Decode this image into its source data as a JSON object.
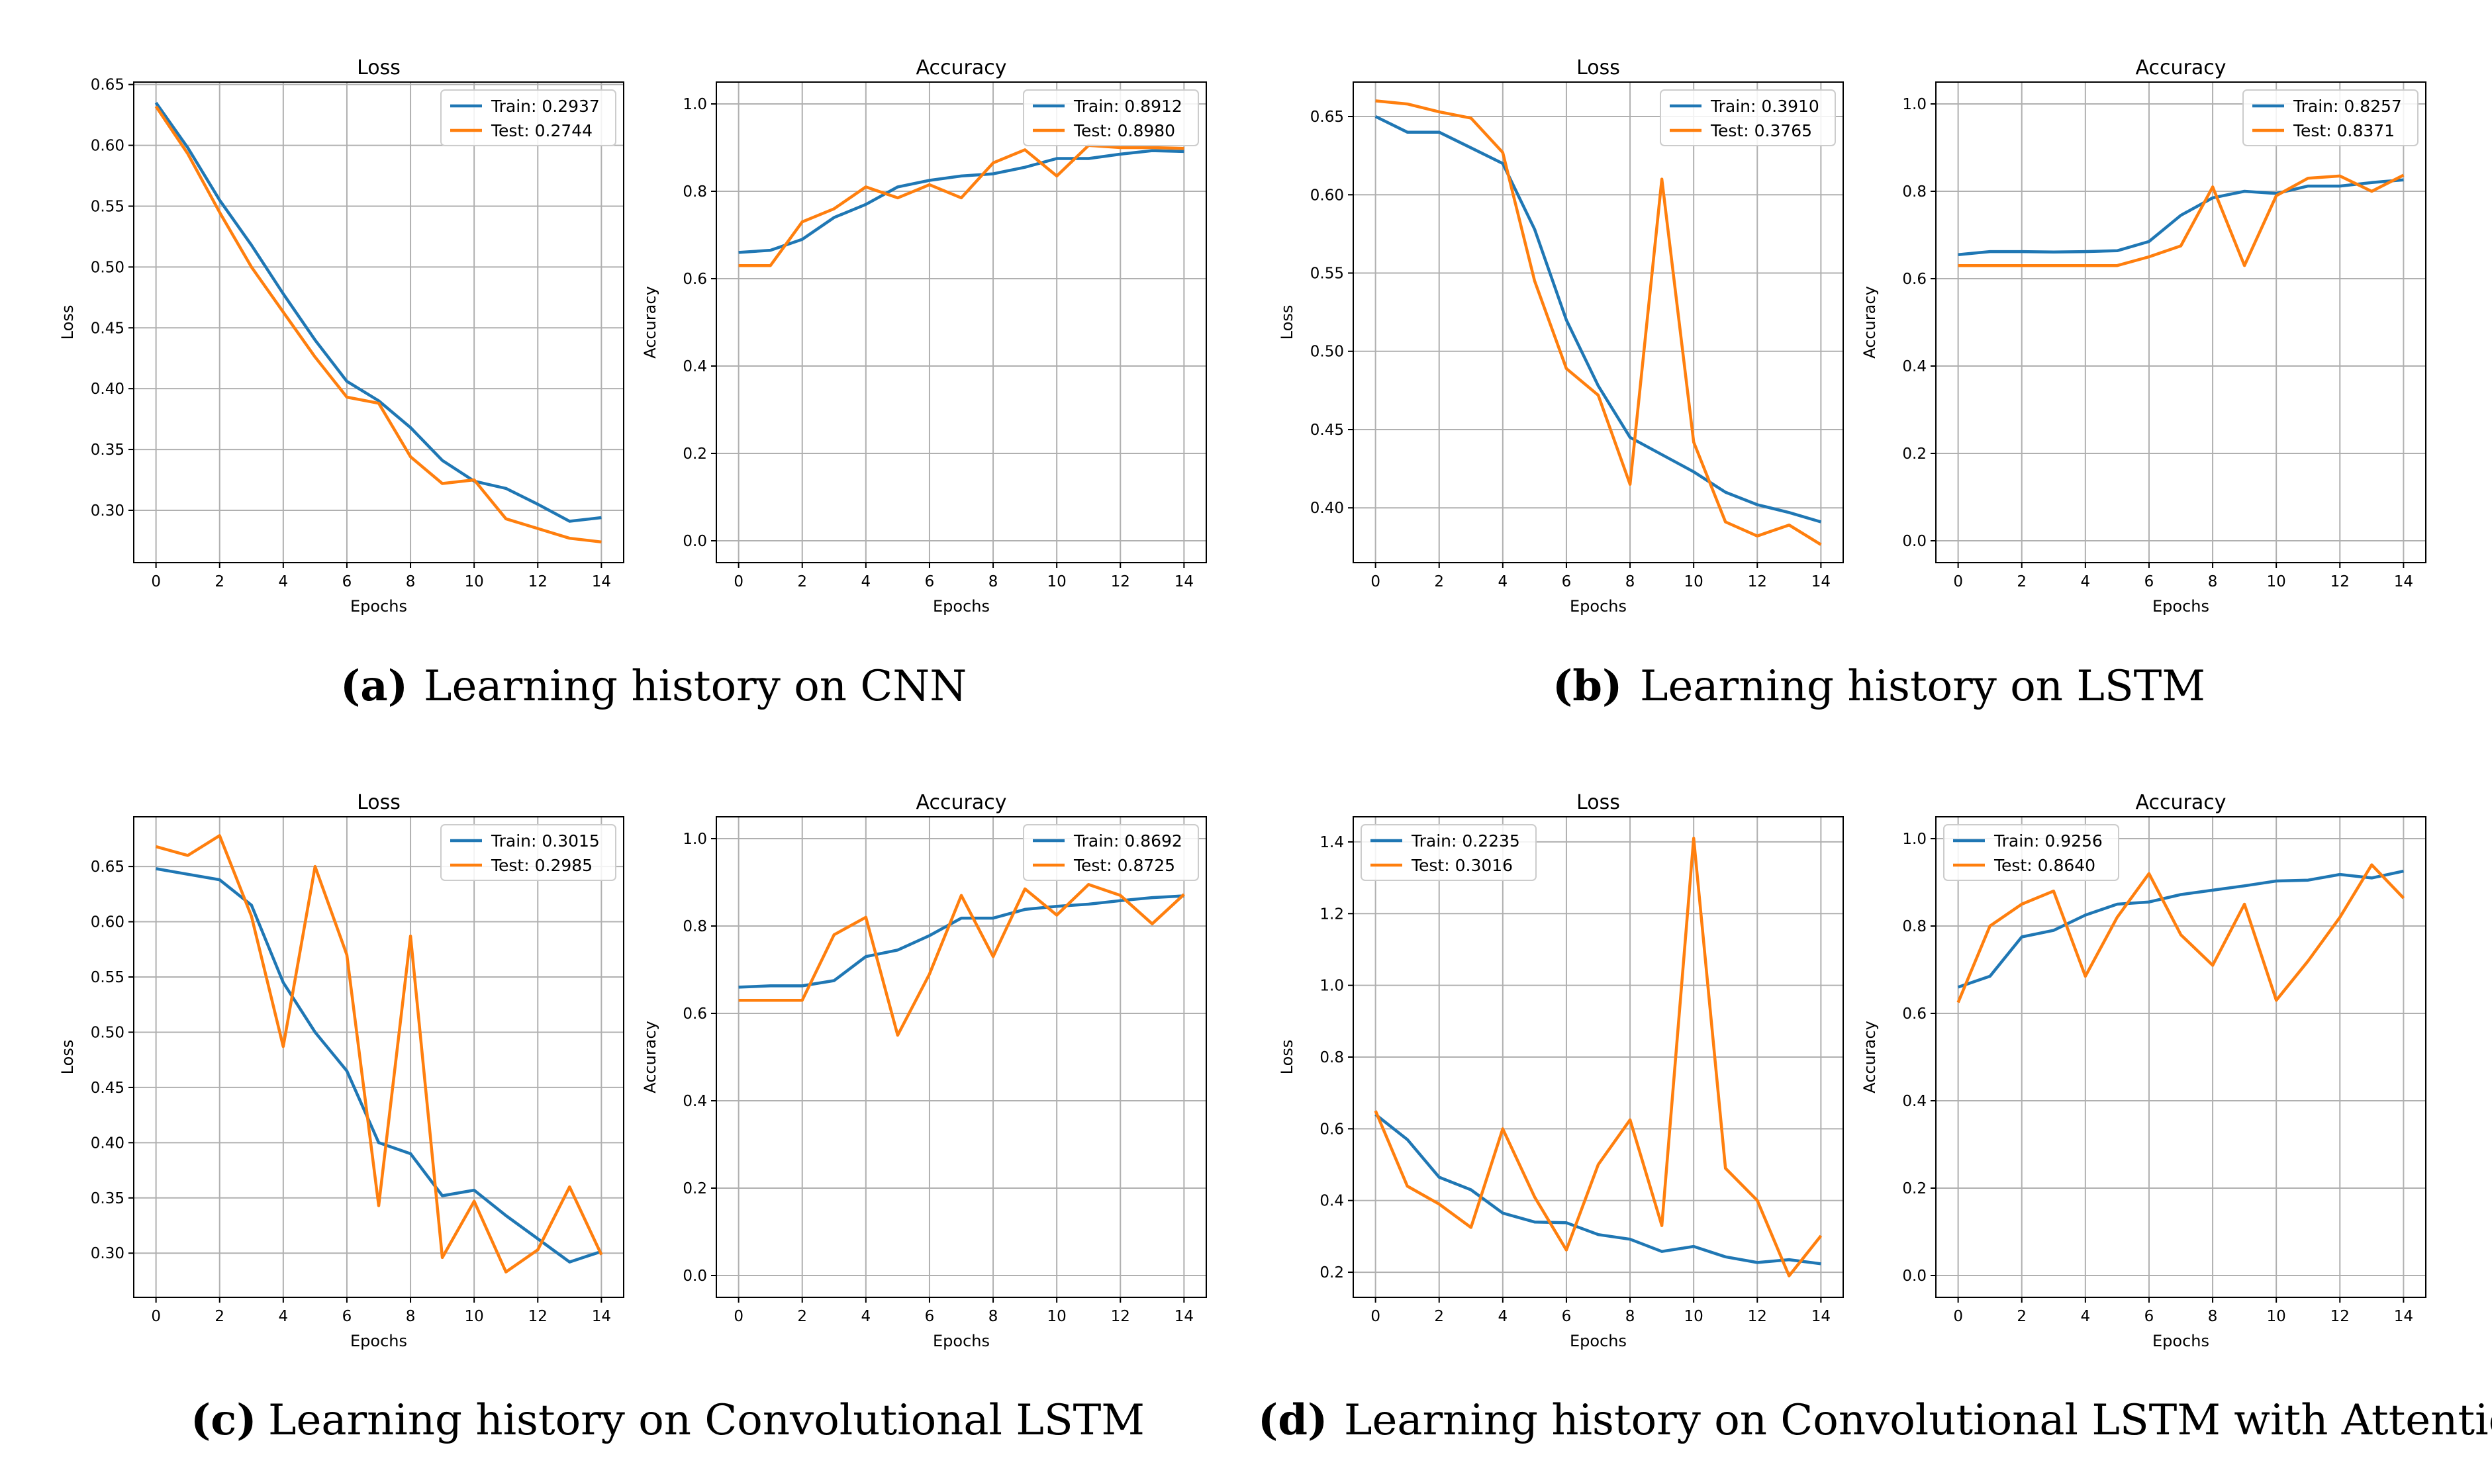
{
  "figure_captions": [
    {
      "letter": "a",
      "text": "Learning history on CNN"
    },
    {
      "letter": "b",
      "text": "Learning history on LSTM"
    },
    {
      "letter": "c",
      "text": "Learning history on Convolutional LSTM"
    },
    {
      "letter": "d",
      "text": "Learning history on Convolutional LSTM with Attention"
    }
  ],
  "colors": {
    "train": "#1f77b4",
    "test": "#ff7f0e",
    "grid": "#b0b0b0",
    "axis": "#000000"
  },
  "chart_data": [
    {
      "type": "line",
      "title": "Loss",
      "xlabel": "Epochs",
      "ylabel": "Loss",
      "x": [
        0,
        1,
        2,
        3,
        4,
        5,
        6,
        7,
        8,
        9,
        10,
        11,
        12,
        13,
        14
      ],
      "xticks": [
        0,
        2,
        4,
        6,
        8,
        10,
        12,
        14
      ],
      "xlim": [
        -0.7,
        14.7
      ],
      "yticks": [
        0.3,
        0.35,
        0.4,
        0.45,
        0.5,
        0.55,
        0.6,
        0.65
      ],
      "ytick_labels": [
        "0.30",
        "0.35",
        "0.40",
        "0.45",
        "0.50",
        "0.55",
        "0.60",
        "0.65"
      ],
      "ylim": [
        0.257,
        0.652
      ],
      "legend": "upper-right",
      "series": [
        {
          "name": "Train: 0.2937",
          "color": "#1f77b4",
          "values": [
            0.635,
            0.598,
            0.555,
            0.518,
            0.478,
            0.44,
            0.406,
            0.39,
            0.368,
            0.341,
            0.324,
            0.318,
            0.305,
            0.291,
            0.294
          ]
        },
        {
          "name": "Test: 0.2744",
          "color": "#ff7f0e",
          "values": [
            0.632,
            0.593,
            0.545,
            0.5,
            0.463,
            0.426,
            0.393,
            0.388,
            0.344,
            0.322,
            0.325,
            0.293,
            0.285,
            0.277,
            0.274
          ]
        }
      ]
    },
    {
      "type": "line",
      "title": "Accuracy",
      "xlabel": "Epochs",
      "ylabel": "Accuracy",
      "x": [
        0,
        1,
        2,
        3,
        4,
        5,
        6,
        7,
        8,
        9,
        10,
        11,
        12,
        13,
        14
      ],
      "xticks": [
        0,
        2,
        4,
        6,
        8,
        10,
        12,
        14
      ],
      "xlim": [
        -0.7,
        14.7
      ],
      "yticks": [
        0.0,
        0.2,
        0.4,
        0.6,
        0.8,
        1.0
      ],
      "ytick_labels": [
        "0.0",
        "0.2",
        "0.4",
        "0.6",
        "0.8",
        "1.0"
      ],
      "ylim": [
        -0.05,
        1.05
      ],
      "legend": "upper-right",
      "series": [
        {
          "name": "Train: 0.8912",
          "color": "#1f77b4",
          "values": [
            0.66,
            0.665,
            0.69,
            0.74,
            0.77,
            0.81,
            0.825,
            0.835,
            0.84,
            0.855,
            0.875,
            0.875,
            0.885,
            0.893,
            0.891
          ]
        },
        {
          "name": "Test: 0.8980",
          "color": "#ff7f0e",
          "values": [
            0.63,
            0.63,
            0.73,
            0.76,
            0.81,
            0.785,
            0.815,
            0.785,
            0.865,
            0.895,
            0.835,
            0.905,
            0.9,
            0.9,
            0.898
          ]
        }
      ]
    },
    {
      "type": "line",
      "title": "Loss",
      "xlabel": "Epochs",
      "ylabel": "Loss",
      "x": [
        0,
        1,
        2,
        3,
        4,
        5,
        6,
        7,
        8,
        9,
        10,
        11,
        12,
        13,
        14
      ],
      "xticks": [
        0,
        2,
        4,
        6,
        8,
        10,
        12,
        14
      ],
      "xlim": [
        -0.7,
        14.7
      ],
      "yticks": [
        0.4,
        0.45,
        0.5,
        0.55,
        0.6,
        0.65
      ],
      "ytick_labels": [
        "0.40",
        "0.45",
        "0.50",
        "0.55",
        "0.60",
        "0.65"
      ],
      "ylim": [
        0.365,
        0.672
      ],
      "legend": "upper-right",
      "series": [
        {
          "name": "Train: 0.3910",
          "color": "#1f77b4",
          "values": [
            0.65,
            0.64,
            0.64,
            0.63,
            0.62,
            0.578,
            0.52,
            0.478,
            0.445,
            0.434,
            0.423,
            0.41,
            0.402,
            0.397,
            0.391
          ]
        },
        {
          "name": "Test: 0.3765",
          "color": "#ff7f0e",
          "values": [
            0.66,
            0.658,
            0.653,
            0.649,
            0.627,
            0.545,
            0.489,
            0.472,
            0.415,
            0.61,
            0.442,
            0.391,
            0.382,
            0.389,
            0.3765
          ]
        }
      ]
    },
    {
      "type": "line",
      "title": "Accuracy",
      "xlabel": "Epochs",
      "ylabel": "Accuracy",
      "x": [
        0,
        1,
        2,
        3,
        4,
        5,
        6,
        7,
        8,
        9,
        10,
        11,
        12,
        13,
        14
      ],
      "xticks": [
        0,
        2,
        4,
        6,
        8,
        10,
        12,
        14
      ],
      "xlim": [
        -0.7,
        14.7
      ],
      "yticks": [
        0.0,
        0.2,
        0.4,
        0.6,
        0.8,
        1.0
      ],
      "ytick_labels": [
        "0.0",
        "0.2",
        "0.4",
        "0.6",
        "0.8",
        "1.0"
      ],
      "ylim": [
        -0.05,
        1.05
      ],
      "legend": "upper-right",
      "series": [
        {
          "name": "Train: 0.8257",
          "color": "#1f77b4",
          "values": [
            0.655,
            0.662,
            0.662,
            0.661,
            0.662,
            0.664,
            0.685,
            0.745,
            0.785,
            0.8,
            0.795,
            0.812,
            0.812,
            0.82,
            0.826
          ]
        },
        {
          "name": "Test: 0.8371",
          "color": "#ff7f0e",
          "values": [
            0.63,
            0.63,
            0.63,
            0.63,
            0.63,
            0.63,
            0.65,
            0.675,
            0.81,
            0.63,
            0.79,
            0.83,
            0.835,
            0.8,
            0.837
          ]
        }
      ]
    },
    {
      "type": "line",
      "title": "Loss",
      "xlabel": "Epochs",
      "ylabel": "Loss",
      "x": [
        0,
        1,
        2,
        3,
        4,
        5,
        6,
        7,
        8,
        9,
        10,
        11,
        12,
        13,
        14
      ],
      "xticks": [
        0,
        2,
        4,
        6,
        8,
        10,
        12,
        14
      ],
      "xlim": [
        -0.7,
        14.7
      ],
      "yticks": [
        0.3,
        0.35,
        0.4,
        0.45,
        0.5,
        0.55,
        0.6,
        0.65
      ],
      "ytick_labels": [
        "0.30",
        "0.35",
        "0.40",
        "0.45",
        "0.50",
        "0.55",
        "0.60",
        "0.65"
      ],
      "ylim": [
        0.26,
        0.695
      ],
      "legend": "upper-right",
      "series": [
        {
          "name": "Train: 0.3015",
          "color": "#1f77b4",
          "values": [
            0.648,
            0.643,
            0.638,
            0.615,
            0.545,
            0.5,
            0.465,
            0.4,
            0.39,
            0.352,
            0.357,
            0.334,
            0.313,
            0.292,
            0.3015
          ]
        },
        {
          "name": "Test: 0.2985",
          "color": "#ff7f0e",
          "values": [
            0.668,
            0.66,
            0.678,
            0.605,
            0.487,
            0.65,
            0.57,
            0.343,
            0.587,
            0.296,
            0.347,
            0.283,
            0.303,
            0.36,
            0.2985
          ]
        }
      ]
    },
    {
      "type": "line",
      "title": "Accuracy",
      "xlabel": "Epochs",
      "ylabel": "Accuracy",
      "x": [
        0,
        1,
        2,
        3,
        4,
        5,
        6,
        7,
        8,
        9,
        10,
        11,
        12,
        13,
        14
      ],
      "xticks": [
        0,
        2,
        4,
        6,
        8,
        10,
        12,
        14
      ],
      "xlim": [
        -0.7,
        14.7
      ],
      "yticks": [
        0.0,
        0.2,
        0.4,
        0.6,
        0.8,
        1.0
      ],
      "ytick_labels": [
        "0.0",
        "0.2",
        "0.4",
        "0.6",
        "0.8",
        "1.0"
      ],
      "ylim": [
        -0.05,
        1.05
      ],
      "legend": "upper-right",
      "series": [
        {
          "name": "Train: 0.8692",
          "color": "#1f77b4",
          "values": [
            0.66,
            0.663,
            0.663,
            0.675,
            0.73,
            0.745,
            0.778,
            0.818,
            0.818,
            0.838,
            0.845,
            0.85,
            0.858,
            0.865,
            0.869
          ]
        },
        {
          "name": "Test: 0.8725",
          "color": "#ff7f0e",
          "values": [
            0.63,
            0.63,
            0.63,
            0.78,
            0.82,
            0.55,
            0.69,
            0.87,
            0.73,
            0.885,
            0.825,
            0.895,
            0.87,
            0.805,
            0.8725
          ]
        }
      ]
    },
    {
      "type": "line",
      "title": "Loss",
      "xlabel": "Epochs",
      "ylabel": "Loss",
      "x": [
        0,
        1,
        2,
        3,
        4,
        5,
        6,
        7,
        8,
        9,
        10,
        11,
        12,
        13,
        14
      ],
      "xticks": [
        0,
        2,
        4,
        6,
        8,
        10,
        12,
        14
      ],
      "xlim": [
        -0.7,
        14.7
      ],
      "yticks": [
        0.2,
        0.4,
        0.6,
        0.8,
        1.0,
        1.2,
        1.4
      ],
      "ytick_labels": [
        "0.2",
        "0.4",
        "0.6",
        "0.8",
        "1.0",
        "1.2",
        "1.4"
      ],
      "ylim": [
        0.13,
        1.47
      ],
      "legend": "upper-left",
      "series": [
        {
          "name": "Train: 0.2235",
          "color": "#1f77b4",
          "values": [
            0.64,
            0.57,
            0.465,
            0.43,
            0.365,
            0.34,
            0.338,
            0.305,
            0.292,
            0.258,
            0.272,
            0.243,
            0.227,
            0.235,
            0.2235
          ]
        },
        {
          "name": "Test: 0.3016",
          "color": "#ff7f0e",
          "values": [
            0.65,
            0.44,
            0.39,
            0.325,
            0.6,
            0.41,
            0.262,
            0.5,
            0.625,
            0.33,
            1.41,
            0.49,
            0.4,
            0.19,
            0.3016
          ]
        }
      ]
    },
    {
      "type": "line",
      "title": "Accuracy",
      "xlabel": "Epochs",
      "ylabel": "Accuracy",
      "x": [
        0,
        1,
        2,
        3,
        4,
        5,
        6,
        7,
        8,
        9,
        10,
        11,
        12,
        13,
        14
      ],
      "xticks": [
        0,
        2,
        4,
        6,
        8,
        10,
        12,
        14
      ],
      "xlim": [
        -0.7,
        14.7
      ],
      "yticks": [
        0.0,
        0.2,
        0.4,
        0.6,
        0.8,
        1.0
      ],
      "ytick_labels": [
        "0.0",
        "0.2",
        "0.4",
        "0.6",
        "0.8",
        "1.0"
      ],
      "ylim": [
        -0.05,
        1.05
      ],
      "legend": "upper-left",
      "series": [
        {
          "name": "Train: 0.9256",
          "color": "#1f77b4",
          "values": [
            0.66,
            0.685,
            0.775,
            0.79,
            0.825,
            0.85,
            0.855,
            0.872,
            0.882,
            0.892,
            0.903,
            0.905,
            0.918,
            0.91,
            0.9256
          ]
        },
        {
          "name": "Test: 0.8640",
          "color": "#ff7f0e",
          "values": [
            0.625,
            0.8,
            0.85,
            0.88,
            0.685,
            0.82,
            0.92,
            0.78,
            0.71,
            0.85,
            0.63,
            0.72,
            0.82,
            0.94,
            0.864
          ]
        }
      ]
    }
  ]
}
